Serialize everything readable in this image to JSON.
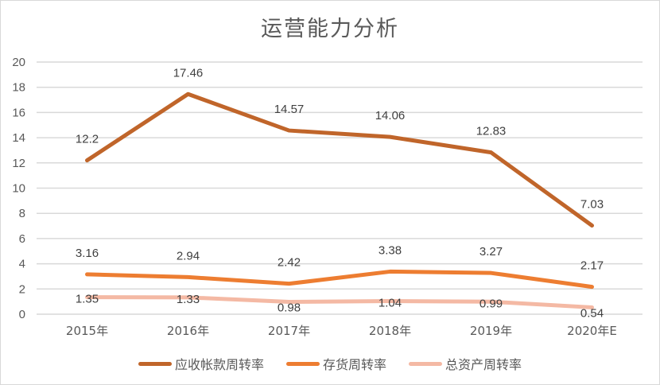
{
  "chart_data": {
    "type": "line",
    "title": "运营能力分析",
    "categories": [
      "2015年",
      "2016年",
      "2017年",
      "2018年",
      "2019年",
      "2020年E"
    ],
    "series": [
      {
        "name": "应收帐款周转率",
        "color": "#C0652A",
        "values": [
          12.2,
          17.46,
          14.57,
          14.06,
          12.83,
          7.03
        ]
      },
      {
        "name": "存货周转率",
        "color": "#ED7D31",
        "values": [
          3.16,
          2.94,
          2.42,
          3.38,
          3.27,
          2.17
        ]
      },
      {
        "name": "总资产周转率",
        "color": "#F4B9A4",
        "values": [
          1.35,
          1.33,
          0.98,
          1.04,
          0.99,
          0.54
        ]
      }
    ],
    "xlabel": "",
    "ylabel": "",
    "ylim": [
      0,
      20
    ],
    "yticks": [
      0,
      2,
      4,
      6,
      8,
      10,
      12,
      14,
      16,
      18,
      20
    ],
    "grid": true,
    "legend_position": "bottom"
  },
  "legend": {
    "items": [
      {
        "label": "应收帐款周转率",
        "color": "#C0652A"
      },
      {
        "label": "存货周转率",
        "color": "#ED7D31"
      },
      {
        "label": "总资产周转率",
        "color": "#F4B9A4"
      }
    ]
  }
}
